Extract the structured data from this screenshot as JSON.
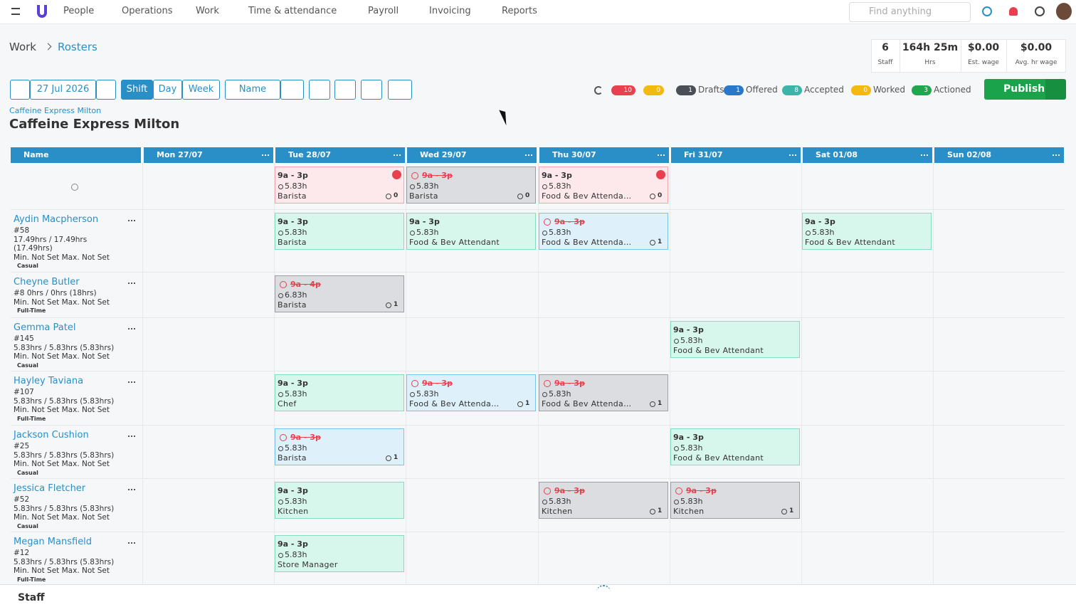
{
  "nav": {
    "items": [
      "People",
      "Operations",
      "Work",
      "Time & attendance",
      "Payroll",
      "Invoicing",
      "Reports"
    ],
    "search": "Find anything"
  },
  "breadcrumb": [
    "Work",
    "Rosters"
  ],
  "stats": [
    {
      "value": "6",
      "label": "Staff"
    },
    {
      "value": "164h 25m",
      "label": "Hrs"
    },
    {
      "value": "$0.00",
      "label": "Est. wage"
    },
    {
      "value": "$0.00",
      "label": "Avg. hr wage"
    }
  ],
  "toolbar": {
    "date": "27 Jul 2026",
    "views": [
      "Shift",
      "Day",
      "Week"
    ],
    "sort": "Name"
  },
  "status": {
    "errors": "10",
    "warnings": "0",
    "legend": [
      {
        "count": "1",
        "label": "Drafts",
        "color": "#4a4f57"
      },
      {
        "count": "1",
        "label": "Offered",
        "color": "#2a78c9"
      },
      {
        "count": "8",
        "label": "Accepted",
        "color": "#3bb5a8"
      },
      {
        "count": "0",
        "label": "Worked",
        "color": "#f2b90f"
      },
      {
        "count": "3",
        "label": "Actioned",
        "color": "#22a54f"
      }
    ],
    "publish": "Publish"
  },
  "location": {
    "small": "Caffeine Express Milton",
    "title": "Caffeine Express Milton"
  },
  "columns": [
    "Name",
    "Mon 27/07",
    "Tue 28/07",
    "Wed 29/07",
    "Thu 30/07",
    "Fri 31/07",
    "Sat 01/08",
    "Sun 02/08"
  ],
  "rows": [
    {
      "shifts": [
        null,
        {
          "time": "9a - 3p",
          "hours": "5.83h",
          "role": "Barista",
          "count": "0",
          "state": "open"
        },
        {
          "time": "9a - 3p",
          "hours": "5.83h",
          "role": "Barista",
          "count": "0",
          "state": "cancelled"
        },
        {
          "time": "9a - 3p",
          "hours": "5.83h",
          "role": "Food & Bev Attenda…",
          "count": "0",
          "state": "open"
        },
        null,
        null,
        null
      ]
    },
    {
      "name": "Aydin Macpherson",
      "lines": [
        "#58",
        "17.49hrs / 17.49hrs",
        "(17.49hrs)",
        "Min. Not Set  Max. Not Set"
      ],
      "type": "Casual",
      "shifts": [
        null,
        {
          "time": "9a - 3p",
          "hours": "5.83h",
          "role": "Barista",
          "state": "published"
        },
        {
          "time": "9a - 3p",
          "hours": "5.83h",
          "role": "Food & Bev Attendant",
          "state": "published"
        },
        {
          "time": "9a - 3p",
          "hours": "5.83h",
          "role": "Food & Bev Attenda…",
          "count": "1",
          "state": "offered"
        },
        null,
        {
          "time": "9a - 3p",
          "hours": "5.83h",
          "role": "Food & Bev Attendant",
          "state": "published"
        },
        null
      ]
    },
    {
      "name": "Cheyne Butler",
      "lines": [
        "#8 0hrs / 0hrs (18hrs)",
        "Min. Not Set  Max. Not Set"
      ],
      "type": "Full-Time",
      "shifts": [
        null,
        {
          "time": "9a - 4p",
          "hours": "6.83h",
          "role": "Barista",
          "count": "1",
          "state": "cancelled"
        },
        null,
        null,
        null,
        null,
        null
      ]
    },
    {
      "name": "Gemma Patel",
      "lines": [
        "#145",
        "5.83hrs / 5.83hrs (5.83hrs)",
        "Min. Not Set  Max. Not Set"
      ],
      "type": "Casual",
      "shifts": [
        null,
        null,
        null,
        null,
        {
          "time": "9a - 3p",
          "hours": "5.83h",
          "role": "Food & Bev Attendant",
          "state": "published"
        },
        null,
        null
      ]
    },
    {
      "name": "Hayley Taviana",
      "lines": [
        "#107",
        "5.83hrs / 5.83hrs (5.83hrs)",
        "Min. Not Set  Max. Not Set"
      ],
      "type": "Full-Time",
      "shifts": [
        null,
        {
          "time": "9a - 3p",
          "hours": "5.83h",
          "role": "Chef",
          "state": "published"
        },
        {
          "time": "9a - 3p",
          "hours": "5.83h",
          "role": "Food & Bev Attenda…",
          "count": "1",
          "state": "offered"
        },
        {
          "time": "9a - 3p",
          "hours": "5.83h",
          "role": "Food & Bev Attenda…",
          "count": "1",
          "state": "cancelled"
        },
        null,
        null,
        null
      ]
    },
    {
      "name": "Jackson Cushion",
      "lines": [
        "#25",
        "5.83hrs / 5.83hrs (5.83hrs)",
        "Min. Not Set  Max. Not Set"
      ],
      "type": "Casual",
      "shifts": [
        null,
        {
          "time": "9a - 3p",
          "hours": "5.83h",
          "role": "Barista",
          "count": "1",
          "state": "offered"
        },
        null,
        null,
        {
          "time": "9a - 3p",
          "hours": "5.83h",
          "role": "Food & Bev Attendant",
          "state": "published"
        },
        null,
        null
      ]
    },
    {
      "name": "Jessica Fletcher",
      "lines": [
        "#52",
        "5.83hrs / 5.83hrs (5.83hrs)",
        "Min. Not Set  Max. Not Set"
      ],
      "type": "Casual",
      "shifts": [
        null,
        {
          "time": "9a - 3p",
          "hours": "5.83h",
          "role": "Kitchen",
          "state": "published"
        },
        null,
        {
          "time": "9a - 3p",
          "hours": "5.83h",
          "role": "Kitchen",
          "count": "1",
          "state": "cancelled"
        },
        {
          "time": "9a - 3p",
          "hours": "5.83h",
          "role": "Kitchen",
          "count": "1",
          "state": "cancelled"
        },
        null,
        null
      ]
    },
    {
      "name": "Megan Mansfield",
      "lines": [
        "#12",
        "5.83hrs / 5.83hrs (5.83hrs)",
        "Min. Not Set  Max. Not Set"
      ],
      "type": "Full-Time",
      "shifts": [
        null,
        {
          "time": "9a - 3p",
          "hours": "5.83h",
          "role": "Store Manager",
          "state": "published"
        },
        null,
        null,
        null,
        null,
        null
      ]
    }
  ],
  "footer": "Staff"
}
